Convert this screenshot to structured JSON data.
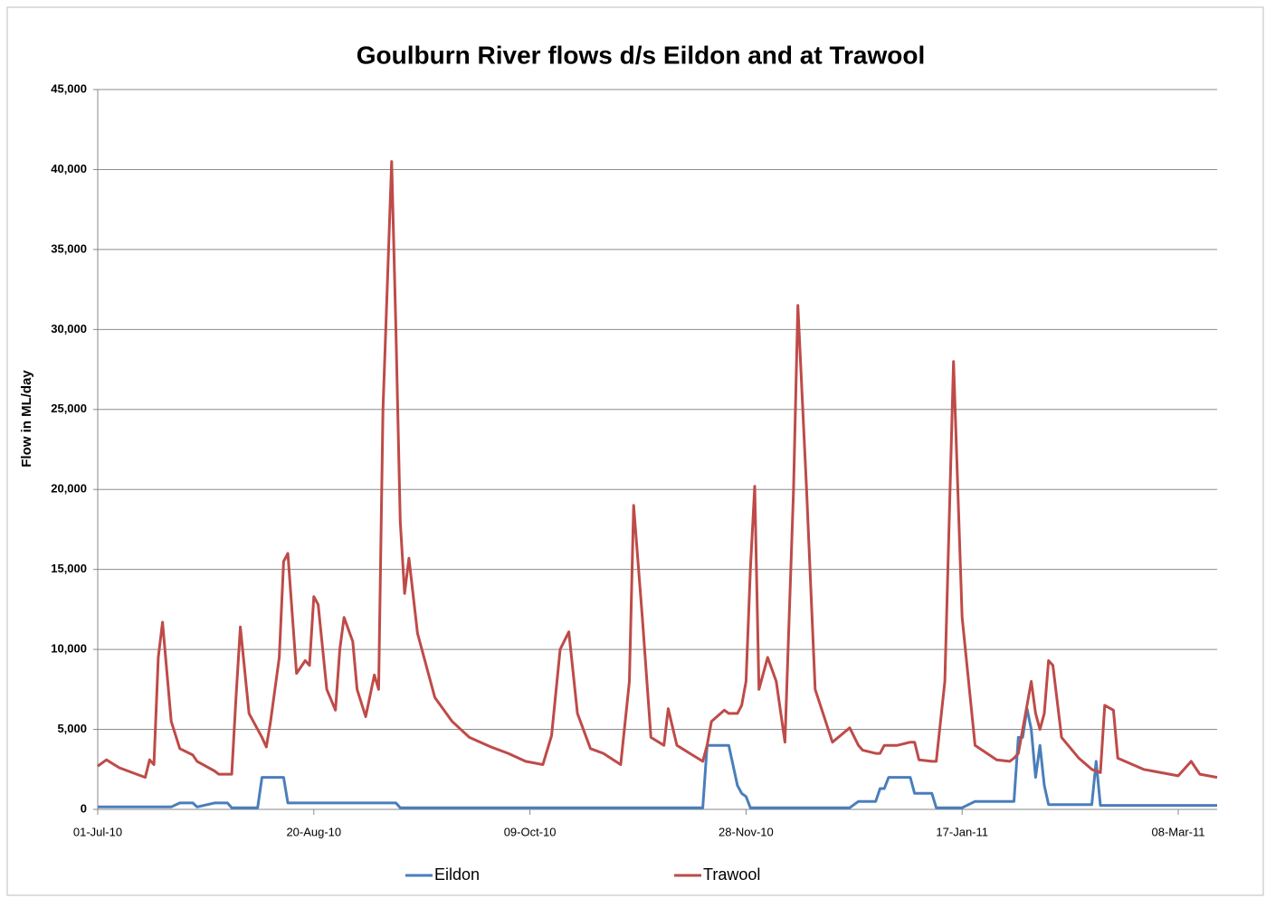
{
  "chart_data": {
    "type": "line",
    "title": "Goulburn River flows d/s Eildon and at Trawool",
    "y_label": "Flow in ML/day",
    "x": [
      "01-Jul-10",
      "03-Jul-10",
      "06-Jul-10",
      "10-Jul-10",
      "12-Jul-10",
      "13-Jul-10",
      "14-Jul-10",
      "15-Jul-10",
      "16-Jul-10",
      "18-Jul-10",
      "20-Jul-10",
      "23-Jul-10",
      "24-Jul-10",
      "28-Jul-10",
      "29-Jul-10",
      "31-Jul-10",
      "01-Aug-10",
      "02-Aug-10",
      "03-Aug-10",
      "05-Aug-10",
      "07-Aug-10",
      "08-Aug-10",
      "09-Aug-10",
      "10-Aug-10",
      "12-Aug-10",
      "13-Aug-10",
      "14-Aug-10",
      "16-Aug-10",
      "18-Aug-10",
      "19-Aug-10",
      "20-Aug-10",
      "21-Aug-10",
      "23-Aug-10",
      "25-Aug-10",
      "26-Aug-10",
      "27-Aug-10",
      "29-Aug-10",
      "30-Aug-10",
      "01-Sep-10",
      "03-Sep-10",
      "04-Sep-10",
      "05-Sep-10",
      "07-Sep-10",
      "08-Sep-10",
      "09-Sep-10",
      "10-Sep-10",
      "11-Sep-10",
      "13-Sep-10",
      "17-Sep-10",
      "21-Sep-10",
      "25-Sep-10",
      "30-Sep-10",
      "04-Oct-10",
      "08-Oct-10",
      "12-Oct-10",
      "14-Oct-10",
      "16-Oct-10",
      "18-Oct-10",
      "20-Oct-10",
      "23-Oct-10",
      "26-Oct-10",
      "30-Oct-10",
      "01-Nov-10",
      "02-Nov-10",
      "04-Nov-10",
      "06-Nov-10",
      "09-Nov-10",
      "10-Nov-10",
      "12-Nov-10",
      "15-Nov-10",
      "18-Nov-10",
      "19-Nov-10",
      "20-Nov-10",
      "23-Nov-10",
      "24-Nov-10",
      "26-Nov-10",
      "27-Nov-10",
      "28-Nov-10",
      "29-Nov-10",
      "30-Nov-10",
      "01-Dec-10",
      "03-Dec-10",
      "05-Dec-10",
      "07-Dec-10",
      "09-Dec-10",
      "10-Dec-10",
      "12-Dec-10",
      "14-Dec-10",
      "18-Dec-10",
      "22-Dec-10",
      "24-Dec-10",
      "25-Dec-10",
      "28-Dec-10",
      "29-Dec-10",
      "30-Dec-10",
      "31-Dec-10",
      "02-Jan-11",
      "05-Jan-11",
      "06-Jan-11",
      "07-Jan-11",
      "10-Jan-11",
      "11-Jan-11",
      "13-Jan-11",
      "15-Jan-11",
      "17-Jan-11",
      "20-Jan-11",
      "25-Jan-11",
      "28-Jan-11",
      "29-Jan-11",
      "30-Jan-11",
      "31-Jan-11",
      "01-Feb-11",
      "02-Feb-11",
      "03-Feb-11",
      "04-Feb-11",
      "05-Feb-11",
      "06-Feb-11",
      "07-Feb-11",
      "09-Feb-11",
      "13-Feb-11",
      "16-Feb-11",
      "17-Feb-11",
      "18-Feb-11",
      "19-Feb-11",
      "21-Feb-11",
      "22-Feb-11",
      "28-Feb-11",
      "08-Mar-11",
      "11-Mar-11",
      "13-Mar-11",
      "17-Mar-11"
    ],
    "series": [
      {
        "name": "Eildon",
        "color": "#4a7ebb",
        "values": [
          150,
          150,
          150,
          150,
          150,
          150,
          150,
          150,
          150,
          150,
          400,
          400,
          150,
          400,
          400,
          400,
          100,
          100,
          100,
          100,
          100,
          2000,
          2000,
          2000,
          2000,
          2000,
          400,
          400,
          400,
          400,
          400,
          400,
          400,
          400,
          400,
          400,
          400,
          400,
          400,
          400,
          400,
          400,
          400,
          400,
          100,
          100,
          100,
          100,
          100,
          100,
          100,
          100,
          100,
          100,
          100,
          100,
          100,
          100,
          100,
          100,
          100,
          100,
          100,
          100,
          100,
          100,
          100,
          100,
          100,
          100,
          100,
          4000,
          4000,
          4000,
          4000,
          1500,
          1000,
          800,
          100,
          100,
          100,
          100,
          100,
          100,
          100,
          100,
          100,
          100,
          100,
          100,
          500,
          500,
          500,
          1300,
          1300,
          2000,
          2000,
          2000,
          1000,
          1000,
          1000,
          100,
          100,
          100,
          100,
          500,
          500,
          500,
          500,
          4500,
          4500,
          6300,
          5000,
          2000,
          4000,
          1500,
          300,
          300,
          300,
          300,
          300,
          3000,
          250,
          250,
          250,
          250,
          250,
          250,
          250,
          250,
          250
        ]
      },
      {
        "name": "Trawool",
        "color": "#be4b48",
        "values": [
          2700,
          3100,
          2600,
          2200,
          2000,
          3100,
          2800,
          9500,
          11700,
          5500,
          3800,
          3400,
          3000,
          2400,
          2200,
          2200,
          2200,
          7000,
          11400,
          6000,
          5000,
          4500,
          3900,
          5500,
          9500,
          15500,
          16000,
          8500,
          9300,
          9000,
          13300,
          12800,
          7500,
          6200,
          10000,
          12000,
          10500,
          7500,
          5800,
          8400,
          7500,
          25000,
          40500,
          30000,
          18000,
          13500,
          15700,
          11000,
          7000,
          5500,
          4500,
          3900,
          3500,
          3000,
          2800,
          4600,
          10000,
          11100,
          6000,
          3800,
          3500,
          2800,
          8000,
          19000,
          12000,
          4500,
          4000,
          6300,
          4000,
          3500,
          3000,
          4000,
          5500,
          6200,
          6000,
          6000,
          6500,
          8000,
          15000,
          20200,
          7500,
          9500,
          8000,
          4200,
          20000,
          31500,
          20000,
          7500,
          4200,
          5100,
          4000,
          3700,
          3500,
          3500,
          4000,
          4000,
          4000,
          4200,
          4200,
          3100,
          3000,
          3000,
          8000,
          28000,
          12000,
          4000,
          3100,
          3000,
          3200,
          3500,
          5000,
          6500,
          8000,
          6000,
          5000,
          6000,
          9300,
          9000,
          4500,
          3200,
          2500,
          2400,
          2300,
          6500,
          6200,
          3200,
          2500,
          2100,
          3000,
          2200,
          2000
        ]
      }
    ],
    "xlim": [
      "01-Jul-10",
      "17-Mar-11"
    ],
    "xticks": [
      "01-Jul-10",
      "20-Aug-10",
      "09-Oct-10",
      "28-Nov-10",
      "17-Jan-11",
      "08-Mar-11"
    ],
    "ylim": [
      0,
      45000
    ],
    "yticks": [
      0,
      {
        "value": 5000,
        "label": "5,000"
      },
      {
        "value": 10000,
        "label": "10,000"
      },
      {
        "value": 15000,
        "label": "15,000"
      },
      {
        "value": 20000,
        "label": "20,000"
      },
      {
        "value": 25000,
        "label": "25,000"
      },
      {
        "value": 30000,
        "label": "30,000"
      },
      {
        "value": 35000,
        "label": "35,000"
      },
      {
        "value": 40000,
        "label": "40,000"
      },
      {
        "value": 45000,
        "label": "45,000"
      }
    ],
    "grid": true,
    "legend": "bottom"
  }
}
